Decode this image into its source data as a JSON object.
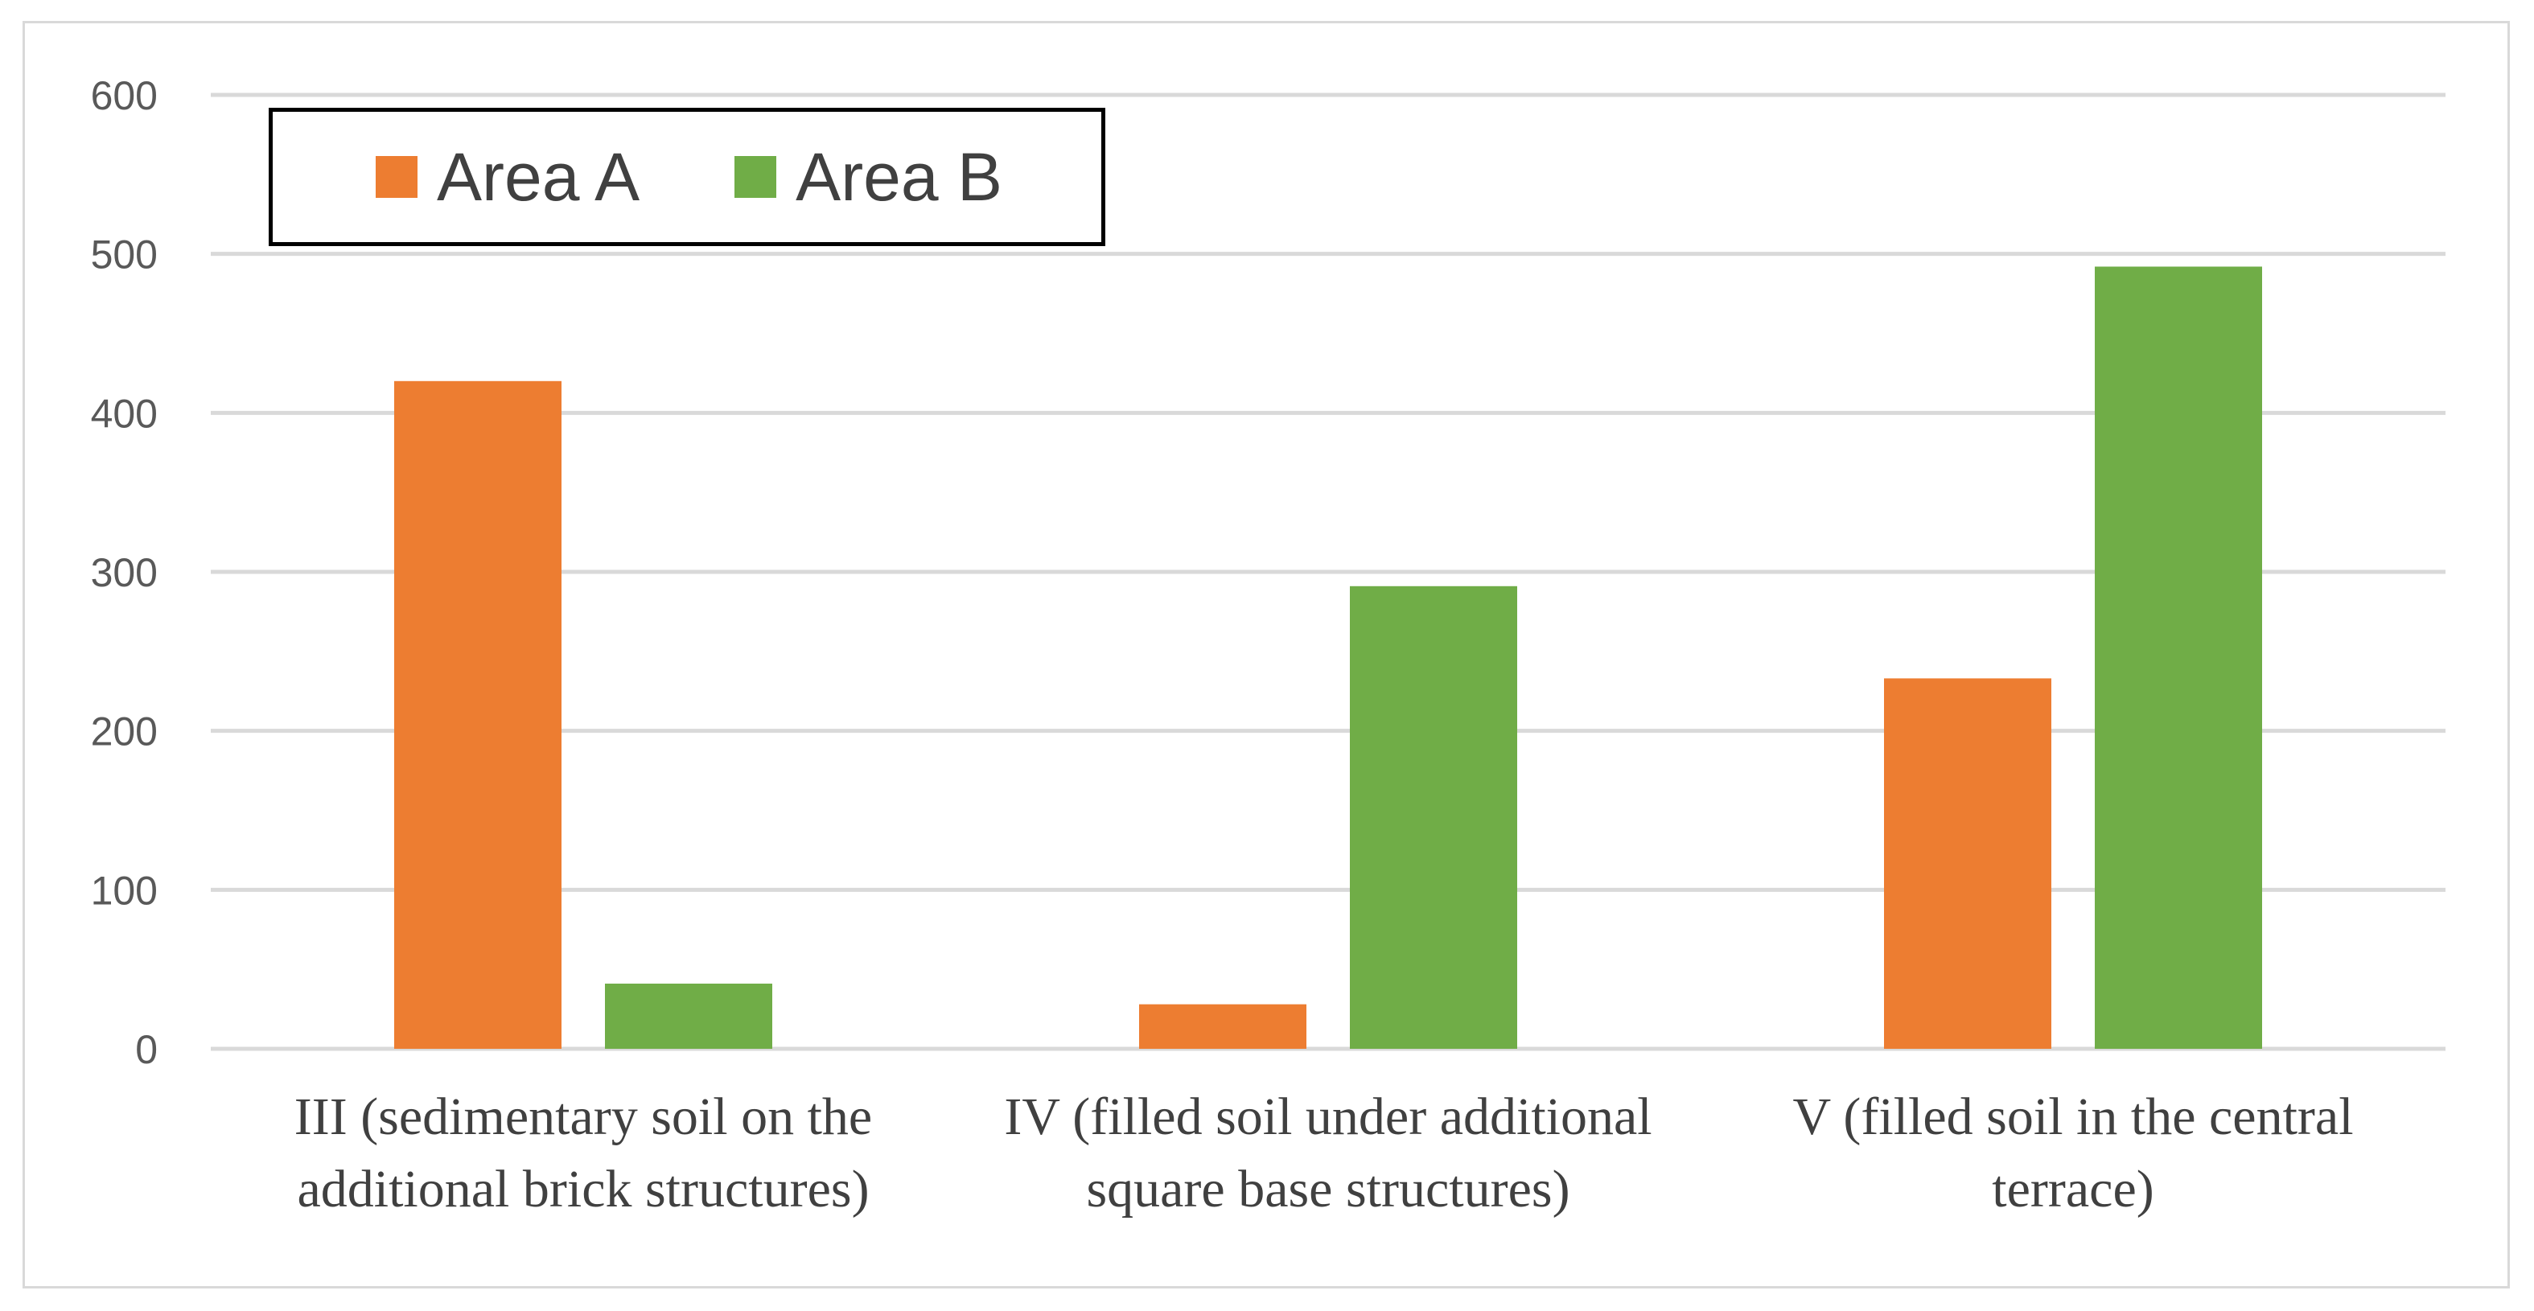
{
  "chart_data": {
    "type": "bar",
    "categories": [
      [
        "III (sedimentary soil on the",
        "additional brick structures)"
      ],
      [
        "IV (filled soil under additional",
        "square base structures)"
      ],
      [
        "V (filled soil in the central",
        "terrace)"
      ]
    ],
    "series": [
      {
        "name": "Area A",
        "color": "#ed7d31",
        "values": [
          420,
          28,
          233
        ]
      },
      {
        "name": "Area B",
        "color": "#70ad47",
        "values": [
          41,
          291,
          492
        ]
      }
    ],
    "ylim": [
      0,
      600
    ],
    "yticks": [
      "0",
      "100",
      "200",
      "300",
      "400",
      "500",
      "600"
    ],
    "grid": true,
    "legend_position": "top-left"
  }
}
